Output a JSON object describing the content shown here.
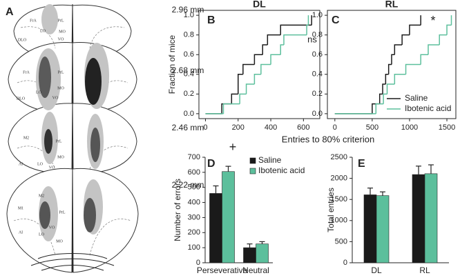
{
  "panel_labels": [
    "A",
    "B",
    "C",
    "D",
    "E"
  ],
  "atlas": {
    "sections": [
      {
        "level": "2.96 mm",
        "regions": [
          "FrA",
          "PrL",
          "LO",
          "MO",
          "VO",
          "DLO"
        ]
      },
      {
        "level": "2.68 mm",
        "regions": [
          "FrA",
          "PrL",
          "LO",
          "MO",
          "VO",
          "DLO"
        ]
      },
      {
        "level": "2.46 mm",
        "regions": [
          "M2",
          "PrL",
          "AI",
          "LO",
          "VO",
          "MO"
        ]
      },
      {
        "level": "2.22 mm",
        "regions": [
          "M1",
          "M2",
          "PrL",
          "AI",
          "LO",
          "VO",
          "MO"
        ]
      }
    ]
  },
  "chart_data": [
    {
      "type": "step",
      "title": "DL",
      "ylabel": "Fraction of mice",
      "xlabel": "Entries to 80% criterion",
      "annotation": "ns",
      "xlim": [
        -40,
        700
      ],
      "xticks": [
        0,
        200,
        400,
        600
      ],
      "ylim": [
        -0.05,
        1.05
      ],
      "yticks": [
        {
          "value": 0,
          "label": "0.0"
        },
        0.2,
        0.4,
        0.6,
        0.8,
        {
          "value": 1,
          "label": "1.0"
        }
      ],
      "series": [
        {
          "name": "Saline",
          "color": "#1a1a1a",
          "x": [
            0,
            100,
            160,
            200,
            230,
            300,
            350,
            380,
            460,
            650
          ],
          "values": [
            0,
            0.1,
            0.2,
            0.4,
            0.5,
            0.6,
            0.7,
            0.8,
            0.9,
            1
          ]
        },
        {
          "name": "Ibotenic acid",
          "color": "#5cbf9c",
          "x": [
            0,
            110,
            210,
            250,
            300,
            340,
            400,
            460,
            480,
            620,
            630
          ],
          "values": [
            0,
            0.1,
            0.2,
            0.3,
            0.4,
            0.5,
            0.6,
            0.7,
            0.8,
            0.9,
            1
          ]
        }
      ]
    },
    {
      "type": "step",
      "title": "RL",
      "annotation": "*",
      "xlim": [
        -100,
        1620
      ],
      "xticks": [
        0,
        500,
        1000,
        1500
      ],
      "ylim": [
        -0.05,
        1.05
      ],
      "yticks": [
        {
          "value": 0,
          "label": "0.0"
        },
        0.2,
        0.4,
        0.6,
        0.8,
        {
          "value": 1,
          "label": "1.0"
        }
      ],
      "series": [
        {
          "name": "Saline",
          "color": "#1a1a1a",
          "x": [
            0,
            500,
            600,
            640,
            680,
            720,
            760,
            800,
            900,
            1000,
            1150
          ],
          "values": [
            0,
            0.1,
            0.2,
            0.3,
            0.4,
            0.5,
            0.6,
            0.7,
            0.8,
            0.9,
            1
          ]
        },
        {
          "name": "Ibotenic acid",
          "color": "#5cbf9c",
          "x": [
            0,
            550,
            650,
            700,
            800,
            950,
            1150,
            1250,
            1400,
            1500,
            1560
          ],
          "values": [
            0,
            0.1,
            0.2,
            0.3,
            0.4,
            0.5,
            0.6,
            0.7,
            0.8,
            0.9,
            1
          ]
        }
      ]
    },
    {
      "type": "bar",
      "ylabel": "Number of errors",
      "annotation": "+",
      "categories": [
        "Perseverative",
        "Neutral"
      ],
      "ylim": [
        0,
        700
      ],
      "yticks": [
        0,
        100,
        200,
        300,
        400,
        500,
        600,
        700
      ],
      "series": [
        {
          "name": "Saline",
          "color": "#1a1a1a",
          "values": [
            460,
            100
          ],
          "errors": [
            50,
            25
          ]
        },
        {
          "name": "Ibotenic acid",
          "color": "#5cbf9c",
          "values": [
            605,
            125
          ],
          "errors": [
            35,
            15
          ]
        }
      ]
    },
    {
      "type": "bar",
      "ylabel": "Total entries",
      "categories": [
        "DL",
        "RL"
      ],
      "ylim": [
        0,
        2500
      ],
      "yticks": [
        0,
        500,
        1000,
        1500,
        2000,
        2500
      ],
      "series": [
        {
          "color": "#1a1a1a",
          "values": [
            1610,
            2090
          ],
          "errors": [
            160,
            200
          ]
        },
        {
          "color": "#5cbf9c",
          "values": [
            1590,
            2110
          ],
          "errors": [
            90,
            210
          ]
        }
      ]
    }
  ]
}
